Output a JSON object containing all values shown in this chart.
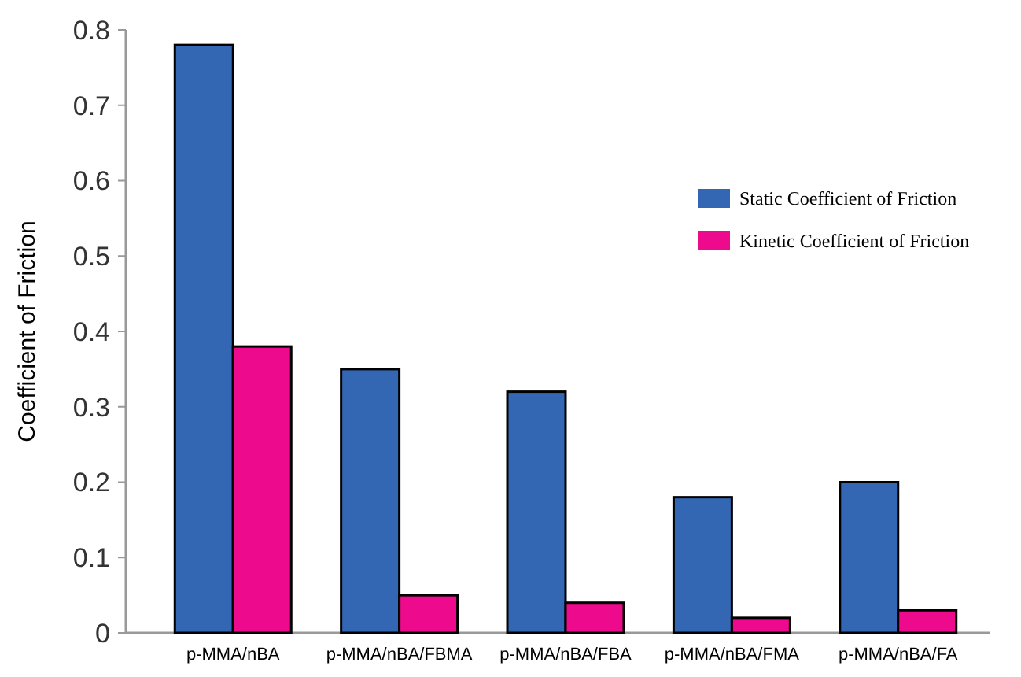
{
  "chart_data": {
    "type": "bar",
    "ylabel": "Coefficient of Friction",
    "categories": [
      "p-MMA/nBA",
      "p-MMA/nBA/FBMA",
      "p-MMA/nBA/FBA",
      "p-MMA/nBA/FMA",
      "p-MMA/nBA/FA"
    ],
    "series": [
      {
        "name": "Static Coefficient of Friction",
        "color": "#3366b3",
        "values": [
          0.78,
          0.35,
          0.32,
          0.18,
          0.2
        ]
      },
      {
        "name": "Kinetic Coefficient of Friction",
        "color": "#ee0a8c",
        "values": [
          0.38,
          0.05,
          0.04,
          0.02,
          0.03
        ]
      }
    ],
    "ylim": [
      0,
      0.8
    ],
    "yticks": [
      0,
      0.1,
      0.2,
      0.3,
      0.4,
      0.5,
      0.6,
      0.7,
      0.8
    ],
    "grid": false,
    "legend": "top right"
  }
}
